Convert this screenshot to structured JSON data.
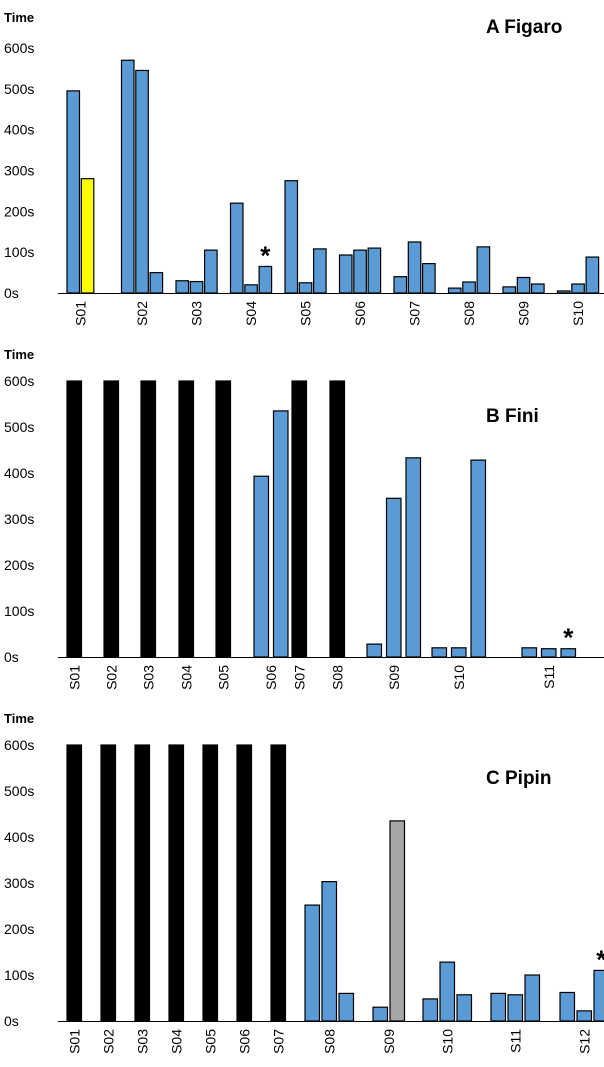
{
  "chart_data": [
    {
      "type": "bar",
      "title": "A  Figaro",
      "ylabel": "Time",
      "ylim": [
        0,
        600
      ],
      "yticks": [
        "0s",
        "100s",
        "200s",
        "300s",
        "400s",
        "500s",
        "600s"
      ],
      "colors": {
        "normal": "#5b9bd5",
        "highlight": "#ffff00",
        "max": "#000000",
        "grey": "#a6a6a6"
      },
      "groups": [
        {
          "label": "S01",
          "bars": [
            {
              "value": 495,
              "color": "#5b9bd5"
            },
            {
              "value": 280,
              "color": "#ffff00"
            }
          ]
        },
        {
          "label": "S02",
          "bars": [
            {
              "value": 570,
              "color": "#5b9bd5"
            },
            {
              "value": 545,
              "color": "#5b9bd5"
            },
            {
              "value": 50,
              "color": "#5b9bd5"
            }
          ]
        },
        {
          "label": "S03",
          "bars": [
            {
              "value": 30,
              "color": "#5b9bd5"
            },
            {
              "value": 28,
              "color": "#5b9bd5"
            },
            {
              "value": 105,
              "color": "#5b9bd5"
            }
          ]
        },
        {
          "label": "S04",
          "bars": [
            {
              "value": 220,
              "color": "#5b9bd5"
            },
            {
              "value": 20,
              "color": "#5b9bd5"
            },
            {
              "value": 65,
              "color": "#5b9bd5",
              "annotation": "*"
            }
          ]
        },
        {
          "label": "S05",
          "bars": [
            {
              "value": 275,
              "color": "#5b9bd5"
            },
            {
              "value": 25,
              "color": "#5b9bd5"
            },
            {
              "value": 108,
              "color": "#5b9bd5"
            }
          ]
        },
        {
          "label": "S06",
          "bars": [
            {
              "value": 93,
              "color": "#5b9bd5"
            },
            {
              "value": 105,
              "color": "#5b9bd5"
            },
            {
              "value": 110,
              "color": "#5b9bd5"
            }
          ]
        },
        {
          "label": "S07",
          "bars": [
            {
              "value": 40,
              "color": "#5b9bd5"
            },
            {
              "value": 125,
              "color": "#5b9bd5"
            },
            {
              "value": 72,
              "color": "#5b9bd5"
            }
          ]
        },
        {
          "label": "S08",
          "bars": [
            {
              "value": 12,
              "color": "#5b9bd5"
            },
            {
              "value": 27,
              "color": "#5b9bd5"
            },
            {
              "value": 113,
              "color": "#5b9bd5"
            }
          ]
        },
        {
          "label": "S09",
          "bars": [
            {
              "value": 15,
              "color": "#5b9bd5"
            },
            {
              "value": 38,
              "color": "#5b9bd5"
            },
            {
              "value": 22,
              "color": "#5b9bd5"
            }
          ]
        },
        {
          "label": "S10",
          "bars": [
            {
              "value": 5,
              "color": "#5b9bd5"
            },
            {
              "value": 22,
              "color": "#5b9bd5"
            },
            {
              "value": 88,
              "color": "#5b9bd5"
            }
          ]
        }
      ]
    },
    {
      "type": "bar",
      "title": "B  Fini",
      "ylabel": "Time",
      "ylim": [
        0,
        600
      ],
      "yticks": [
        "0s",
        "100s",
        "200s",
        "300s",
        "400s",
        "500s",
        "600s"
      ],
      "groups": [
        {
          "label": "S01",
          "bars": [
            {
              "value": 600,
              "color": "#000000"
            }
          ]
        },
        {
          "label": "S02",
          "bars": [
            {
              "value": 600,
              "color": "#000000"
            }
          ]
        },
        {
          "label": "S03",
          "bars": [
            {
              "value": 600,
              "color": "#000000"
            }
          ]
        },
        {
          "label": "S04",
          "bars": [
            {
              "value": 600,
              "color": "#000000"
            }
          ]
        },
        {
          "label": "S05",
          "bars": [
            {
              "value": 600,
              "color": "#000000"
            }
          ]
        },
        {
          "label": "S06",
          "bars": [
            {
              "value": 393,
              "color": "#5b9bd5"
            },
            {
              "value": 535,
              "color": "#5b9bd5"
            }
          ]
        },
        {
          "label": "S07",
          "bars": [
            {
              "value": 600,
              "color": "#000000"
            }
          ]
        },
        {
          "label": "S08",
          "bars": [
            {
              "value": 600,
              "color": "#000000"
            }
          ]
        },
        {
          "label": "S09",
          "bars": [
            {
              "value": 28,
              "color": "#5b9bd5"
            },
            {
              "value": 345,
              "color": "#5b9bd5"
            },
            {
              "value": 433,
              "color": "#5b9bd5"
            }
          ]
        },
        {
          "label": "S10",
          "bars": [
            {
              "value": 20,
              "color": "#5b9bd5"
            },
            {
              "value": 20,
              "color": "#5b9bd5"
            },
            {
              "value": 428,
              "color": "#5b9bd5"
            }
          ]
        },
        {
          "label": "S11",
          "bars": [
            {
              "value": 20,
              "color": "#5b9bd5"
            },
            {
              "value": 18,
              "color": "#5b9bd5"
            },
            {
              "value": 18,
              "color": "#5b9bd5",
              "annotation": "*"
            }
          ]
        }
      ]
    },
    {
      "type": "bar",
      "title": "C  Pipin",
      "ylabel": "Time",
      "ylim": [
        0,
        600
      ],
      "yticks": [
        "0s",
        "100s",
        "200s",
        "300s",
        "400s",
        "500s",
        "600s"
      ],
      "groups": [
        {
          "label": "S01",
          "bars": [
            {
              "value": 600,
              "color": "#000000"
            }
          ]
        },
        {
          "label": "S02",
          "bars": [
            {
              "value": 600,
              "color": "#000000"
            }
          ]
        },
        {
          "label": "S03",
          "bars": [
            {
              "value": 600,
              "color": "#000000"
            }
          ]
        },
        {
          "label": "S04",
          "bars": [
            {
              "value": 600,
              "color": "#000000"
            }
          ]
        },
        {
          "label": "S05",
          "bars": [
            {
              "value": 600,
              "color": "#000000"
            }
          ]
        },
        {
          "label": "S06",
          "bars": [
            {
              "value": 600,
              "color": "#000000"
            }
          ]
        },
        {
          "label": "S07",
          "bars": [
            {
              "value": 600,
              "color": "#000000"
            }
          ]
        },
        {
          "label": "S08",
          "bars": [
            {
              "value": 252,
              "color": "#5b9bd5"
            },
            {
              "value": 303,
              "color": "#5b9bd5"
            },
            {
              "value": 60,
              "color": "#5b9bd5"
            }
          ]
        },
        {
          "label": "S09",
          "bars": [
            {
              "value": 30,
              "color": "#5b9bd5"
            },
            {
              "value": 435,
              "color": "#a6a6a6"
            }
          ]
        },
        {
          "label": "S10",
          "bars": [
            {
              "value": 48,
              "color": "#5b9bd5"
            },
            {
              "value": 128,
              "color": "#5b9bd5"
            },
            {
              "value": 57,
              "color": "#5b9bd5"
            }
          ]
        },
        {
          "label": "S11",
          "bars": [
            {
              "value": 60,
              "color": "#5b9bd5"
            },
            {
              "value": 57,
              "color": "#5b9bd5"
            },
            {
              "value": 100,
              "color": "#5b9bd5"
            }
          ]
        },
        {
          "label": "S12",
          "bars": [
            {
              "value": 62,
              "color": "#5b9bd5"
            },
            {
              "value": 22,
              "color": "#5b9bd5"
            },
            {
              "value": 110,
              "color": "#5b9bd5",
              "annotation": "*"
            }
          ]
        }
      ]
    }
  ]
}
